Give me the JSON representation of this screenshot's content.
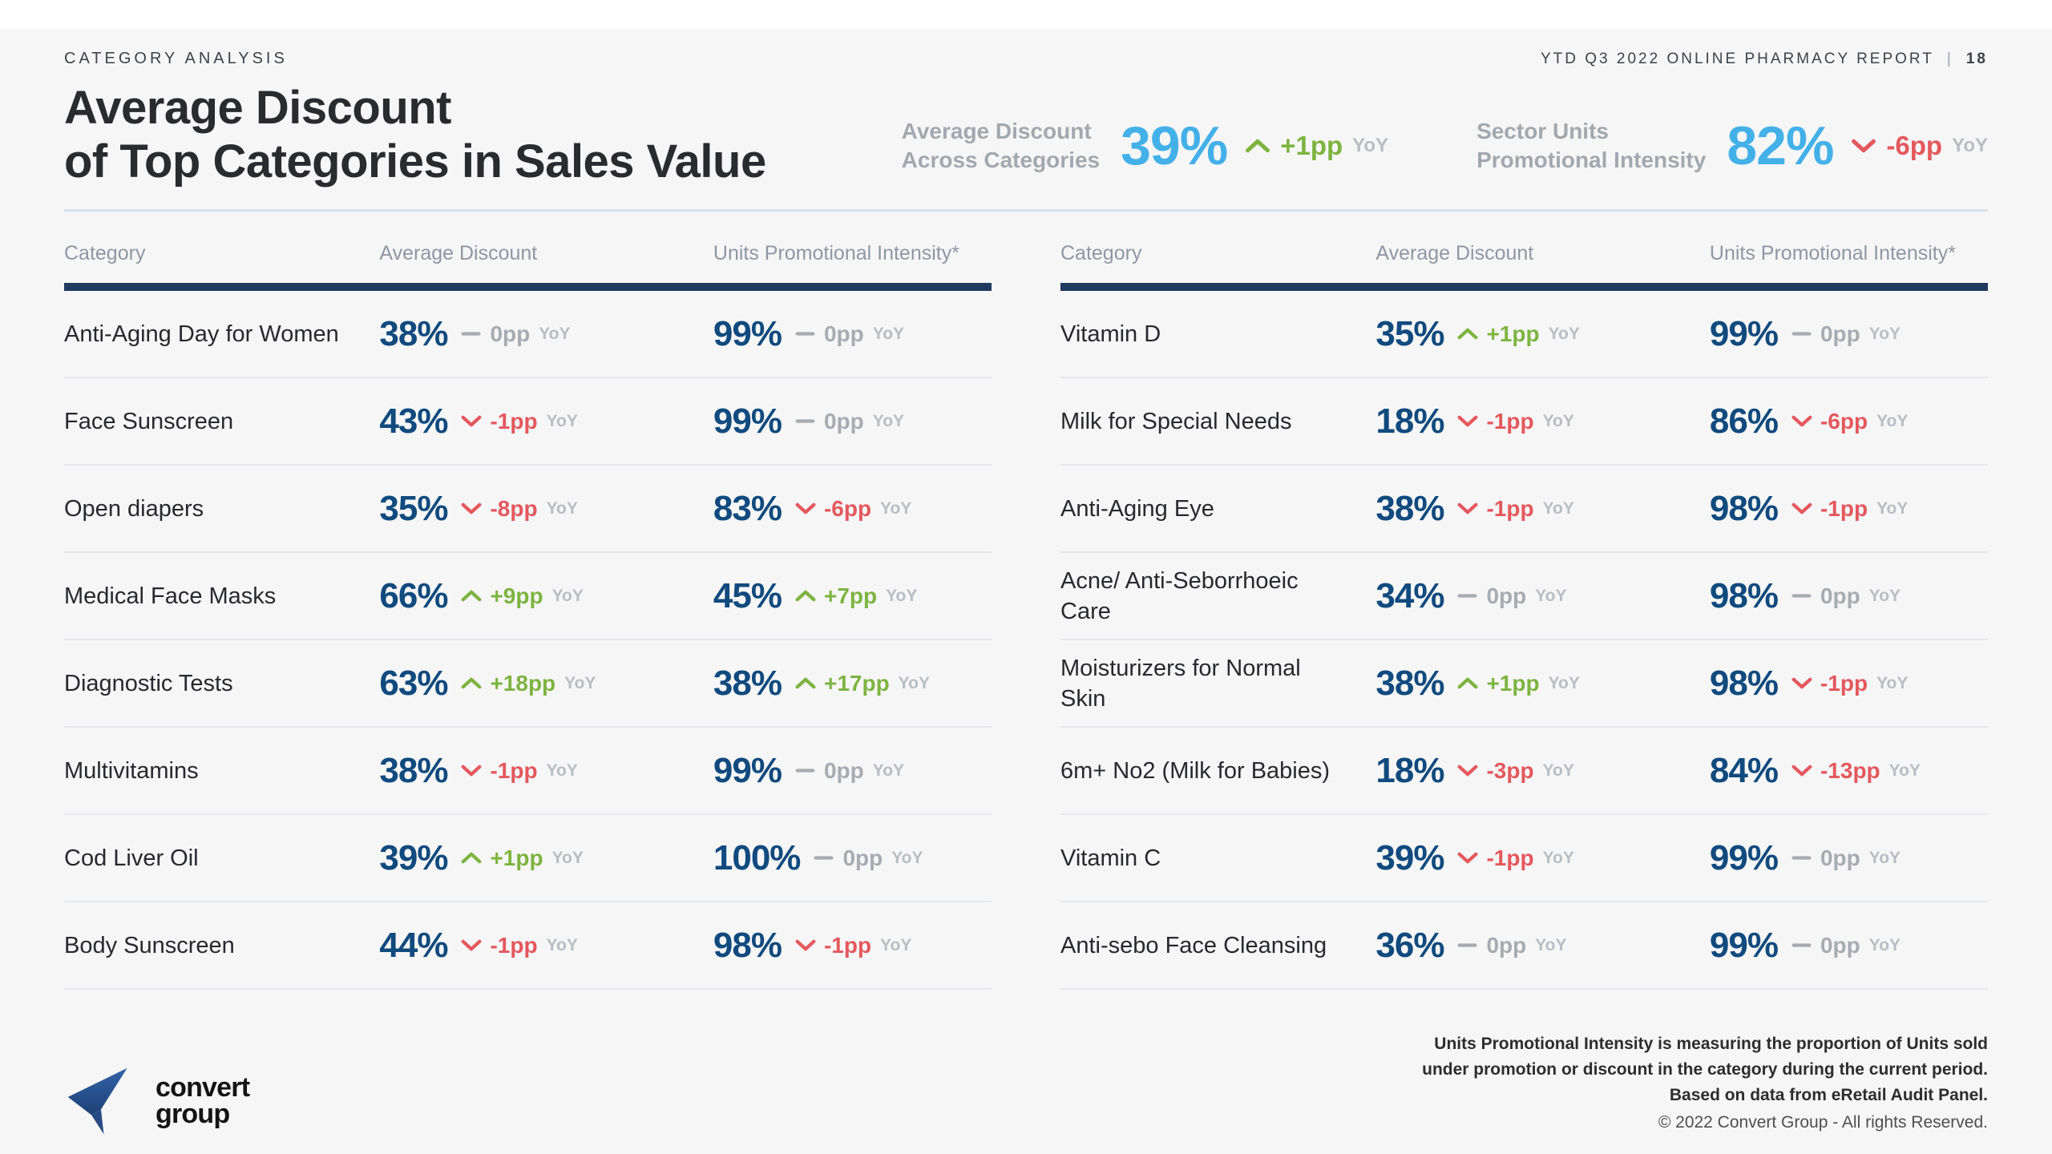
{
  "header": {
    "eyebrow": "CATEGORY ANALYSIS",
    "report_label": "YTD Q3 2022 ONLINE PHARMACY REPORT",
    "separator": "|",
    "page_number": "18",
    "title_line1": "Average Discount",
    "title_line2": "of Top Categories in Sales Value"
  },
  "kpis": [
    {
      "label_line1": "Average Discount",
      "label_line2": "Across Categories",
      "value": "39%",
      "trend": "up",
      "delta": "+1pp",
      "period": "YoY"
    },
    {
      "label_line1": "Sector Units",
      "label_line2": "Promotional Intensity",
      "value": "82%",
      "trend": "down",
      "delta": "-6pp",
      "period": "YoY"
    }
  ],
  "tables": {
    "headers": {
      "category": "Category",
      "discount": "Average Discount",
      "intensity": "Units Promotional Intensity*"
    },
    "left": {
      "rows": [
        {
          "category": "Anti-Aging Day for Women",
          "discount": {
            "value": "38%",
            "trend": "flat",
            "delta": "0pp",
            "period": "YoY"
          },
          "intensity": {
            "value": "99%",
            "trend": "flat",
            "delta": "0pp",
            "period": "YoY"
          }
        },
        {
          "category": "Face Sunscreen",
          "discount": {
            "value": "43%",
            "trend": "down",
            "delta": "-1pp",
            "period": "YoY"
          },
          "intensity": {
            "value": "99%",
            "trend": "flat",
            "delta": "0pp",
            "period": "YoY"
          }
        },
        {
          "category": "Open diapers",
          "discount": {
            "value": "35%",
            "trend": "down",
            "delta": "-8pp",
            "period": "YoY"
          },
          "intensity": {
            "value": "83%",
            "trend": "down",
            "delta": "-6pp",
            "period": "YoY"
          }
        },
        {
          "category": "Medical Face Masks",
          "discount": {
            "value": "66%",
            "trend": "up",
            "delta": "+9pp",
            "period": "YoY"
          },
          "intensity": {
            "value": "45%",
            "trend": "up",
            "delta": "+7pp",
            "period": "YoY"
          }
        },
        {
          "category": "Diagnostic Tests",
          "discount": {
            "value": "63%",
            "trend": "up",
            "delta": "+18pp",
            "period": "YoY"
          },
          "intensity": {
            "value": "38%",
            "trend": "up",
            "delta": "+17pp",
            "period": "YoY"
          }
        },
        {
          "category": "Multivitamins",
          "discount": {
            "value": "38%",
            "trend": "down",
            "delta": "-1pp",
            "period": "YoY"
          },
          "intensity": {
            "value": "99%",
            "trend": "flat",
            "delta": "0pp",
            "period": "YoY"
          }
        },
        {
          "category": "Cod Liver Oil",
          "discount": {
            "value": "39%",
            "trend": "up",
            "delta": "+1pp",
            "period": "YoY"
          },
          "intensity": {
            "value": "100%",
            "trend": "flat",
            "delta": "0pp",
            "period": "YoY"
          }
        },
        {
          "category": "Body Sunscreen",
          "discount": {
            "value": "44%",
            "trend": "down",
            "delta": "-1pp",
            "period": "YoY"
          },
          "intensity": {
            "value": "98%",
            "trend": "down",
            "delta": "-1pp",
            "period": "YoY"
          }
        }
      ]
    },
    "right": {
      "rows": [
        {
          "category": "Vitamin D",
          "discount": {
            "value": "35%",
            "trend": "up",
            "delta": "+1pp",
            "period": "YoY"
          },
          "intensity": {
            "value": "99%",
            "trend": "flat",
            "delta": "0pp",
            "period": "YoY"
          }
        },
        {
          "category": "Milk for Special Needs",
          "discount": {
            "value": "18%",
            "trend": "down",
            "delta": "-1pp",
            "period": "YoY"
          },
          "intensity": {
            "value": "86%",
            "trend": "down",
            "delta": "-6pp",
            "period": "YoY"
          }
        },
        {
          "category": "Anti-Aging Eye",
          "discount": {
            "value": "38%",
            "trend": "down",
            "delta": "-1pp",
            "period": "YoY"
          },
          "intensity": {
            "value": "98%",
            "trend": "down",
            "delta": "-1pp",
            "period": "YoY"
          }
        },
        {
          "category": "Acne/ Anti-Seborrhoeic Care",
          "discount": {
            "value": "34%",
            "trend": "flat",
            "delta": "0pp",
            "period": "YoY"
          },
          "intensity": {
            "value": "98%",
            "trend": "flat",
            "delta": "0pp",
            "period": "YoY"
          }
        },
        {
          "category": "Moisturizers for Normal Skin",
          "discount": {
            "value": "38%",
            "trend": "up",
            "delta": "+1pp",
            "period": "YoY"
          },
          "intensity": {
            "value": "98%",
            "trend": "down",
            "delta": "-1pp",
            "period": "YoY"
          }
        },
        {
          "category": "6m+ No2 (Milk for Babies)",
          "discount": {
            "value": "18%",
            "trend": "down",
            "delta": "-3pp",
            "period": "YoY"
          },
          "intensity": {
            "value": "84%",
            "trend": "down",
            "delta": "-13pp",
            "period": "YoY"
          }
        },
        {
          "category": "Vitamin C",
          "discount": {
            "value": "39%",
            "trend": "down",
            "delta": "-1pp",
            "period": "YoY"
          },
          "intensity": {
            "value": "99%",
            "trend": "flat",
            "delta": "0pp",
            "period": "YoY"
          }
        },
        {
          "category": "Anti-sebo Face Cleansing",
          "discount": {
            "value": "36%",
            "trend": "flat",
            "delta": "0pp",
            "period": "YoY"
          },
          "intensity": {
            "value": "99%",
            "trend": "flat",
            "delta": "0pp",
            "period": "YoY"
          }
        }
      ]
    }
  },
  "footer": {
    "logo_line1": "convert",
    "logo_line2": "group",
    "note_lines": [
      "Units Promotional Intensity is measuring the proportion of Units sold",
      "under promotion or discount in the category during the current period.",
      "Based on data from eRetail Audit Panel.",
      "© 2022 Convert Group - All rights Reserved."
    ]
  },
  "colors": {
    "accent_blue": "#44b0e8",
    "value_navy": "#114a7e",
    "positive_green": "#7db440",
    "negative_red": "#e4585c",
    "neutral_gray": "#a7abb2",
    "header_bar_navy": "#203a60",
    "background": "#f6f6f7"
  }
}
